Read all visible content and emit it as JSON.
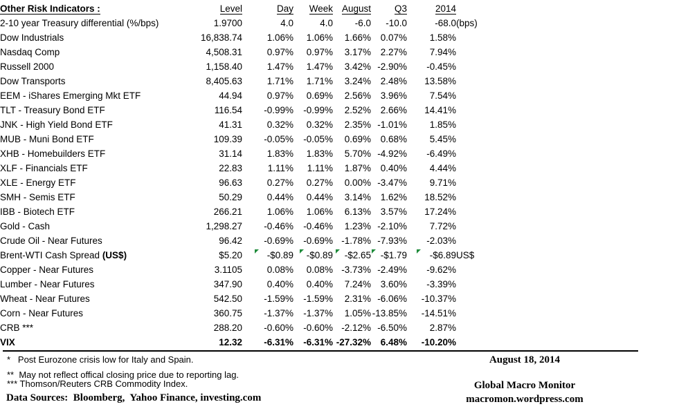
{
  "table": {
    "title": "Other Risk Indicators :",
    "headers": {
      "level": "Level",
      "day": "Day",
      "week": "Week",
      "august": "August",
      "q3": "Q3",
      "y2014": "2014"
    },
    "rows": [
      {
        "label": "2-10 year Treasury differential (%/bps)",
        "level": "1.9700",
        "day": "4.0",
        "week": "4.0",
        "august": "-6.0",
        "q3": "-10.0",
        "y2014": "-68.0",
        "suffix": "(bps)",
        "nopct": true
      },
      {
        "label": "Dow Industrials",
        "level": "16,838.74",
        "day": "1.06%",
        "week": "1.06%",
        "august": "1.66%",
        "q3": "0.07%",
        "y2014": "1.58%"
      },
      {
        "label": "Nasdaq Comp",
        "level": "4,508.31",
        "day": "0.97%",
        "week": "0.97%",
        "august": "3.17%",
        "q3": "2.27%",
        "y2014": "7.94%"
      },
      {
        "label": "Russell 2000",
        "level": "1,158.40",
        "day": "1.47%",
        "week": "1.47%",
        "august": "3.42%",
        "q3": "-2.90%",
        "y2014": "-0.45%"
      },
      {
        "label": "Dow Transports",
        "level": "8,405.63",
        "day": "1.71%",
        "week": "1.71%",
        "august": "3.24%",
        "q3": "2.48%",
        "y2014": "13.58%"
      },
      {
        "label": "EEM - iShares Emerging Mkt ETF",
        "level": "44.94",
        "day": "0.97%",
        "week": "0.69%",
        "august": "2.56%",
        "q3": "3.96%",
        "y2014": "7.54%"
      },
      {
        "label": "TLT - Treasury Bond ETF",
        "level": "116.54",
        "day": "-0.99%",
        "week": "-0.99%",
        "august": "2.52%",
        "q3": "2.66%",
        "y2014": "14.41%"
      },
      {
        "label": "JNK - High Yield Bond ETF",
        "level": "41.31",
        "day": "0.32%",
        "week": "0.32%",
        "august": "2.35%",
        "q3": "-1.01%",
        "y2014": "1.85%"
      },
      {
        "label": "MUB - Muni Bond ETF",
        "level": "109.39",
        "day": "-0.05%",
        "week": "-0.05%",
        "august": "0.69%",
        "q3": "0.68%",
        "y2014": "5.45%"
      },
      {
        "label": "XHB - Homebuilders ETF",
        "level": "31.14",
        "day": "1.83%",
        "week": "1.83%",
        "august": "5.70%",
        "q3": "-4.92%",
        "y2014": "-6.49%"
      },
      {
        "label": "XLF - Financials ETF",
        "level": "22.83",
        "day": "1.11%",
        "week": "1.11%",
        "august": "1.87%",
        "q3": "0.40%",
        "y2014": "4.44%"
      },
      {
        "label": "XLE - Energy ETF",
        "level": "96.63",
        "day": "0.27%",
        "week": "0.27%",
        "august": "0.00%",
        "q3": "-3.47%",
        "y2014": "9.71%"
      },
      {
        "label": "SMH - Semis ETF",
        "level": "50.29",
        "day": "0.44%",
        "week": "0.44%",
        "august": "3.14%",
        "q3": "1.62%",
        "y2014": "18.52%"
      },
      {
        "label": "IBB - Biotech ETF",
        "level": "266.21",
        "day": "1.06%",
        "week": "1.06%",
        "august": "6.13%",
        "q3": "3.57%",
        "y2014": "17.24%"
      },
      {
        "label": "Gold - Cash",
        "level": "1,298.27",
        "day": "-0.46%",
        "week": "-0.46%",
        "august": "1.23%",
        "q3": "-2.10%",
        "y2014": "7.72%"
      },
      {
        "label": "Crude Oil - Near Futures",
        "level": "96.42",
        "day": "-0.69%",
        "week": "-0.69%",
        "august": "-1.78%",
        "q3": "-7.93%",
        "y2014": "-2.03%"
      },
      {
        "label": "Brent-WTI Cash Spread ",
        "label_bold": "(US$)",
        "level": "$5.20",
        "day": "-$0.89",
        "week": "-$0.89",
        "august": "-$2.65",
        "q3": "-$1.79",
        "y2014": "-$6.89",
        "suffix": "US$",
        "flags": true
      },
      {
        "label": "Copper - Near Futures",
        "level": "3.1105",
        "day": "0.08%",
        "week": "0.08%",
        "august": "-3.73%",
        "q3": "-2.49%",
        "y2014": "-9.62%"
      },
      {
        "label": "Lumber - Near Futures",
        "level": "347.90",
        "day": "0.40%",
        "week": "0.40%",
        "august": "7.24%",
        "q3": "3.60%",
        "y2014": "-3.39%"
      },
      {
        "label": "Wheat - Near Futures",
        "level": "542.50",
        "day": "-1.59%",
        "week": "-1.59%",
        "august": "2.31%",
        "q3": "-6.06%",
        "y2014": "-10.37%"
      },
      {
        "label": "Corn - Near Futures",
        "level": "360.75",
        "day": "-1.37%",
        "week": "-1.37%",
        "august": "1.05%",
        "q3": "-13.85%",
        "y2014": "-14.51%"
      },
      {
        "label": "CRB ***",
        "level": "288.20",
        "day": "-0.60%",
        "week": "-0.60%",
        "august": "-2.12%",
        "q3": "-6.50%",
        "y2014": "2.87%"
      },
      {
        "label": "VIX",
        "level": "12.32",
        "day": "-6.31%",
        "week": "-6.31%",
        "august": "-27.32%",
        "q3": "6.48%",
        "y2014": "-10.20%",
        "bold": true
      }
    ]
  },
  "footnotes": [
    "*   Post Eurozone crisis low for Italy and Spain.",
    "**  May not reflect offical closing price due to reporting lag.",
    "*** Thomson/Reuters CRB Commodity Index."
  ],
  "data_sources": "Data Sources:  Bloomberg,  Yahoo Finance, investing.com",
  "branding": {
    "date": "August 18, 2014",
    "name": "Global Macro Monitor",
    "url": "macromon.wordpress.com"
  },
  "colors": {
    "flag_green": "#1f8b3b",
    "text": "#000000",
    "background": "#ffffff"
  }
}
